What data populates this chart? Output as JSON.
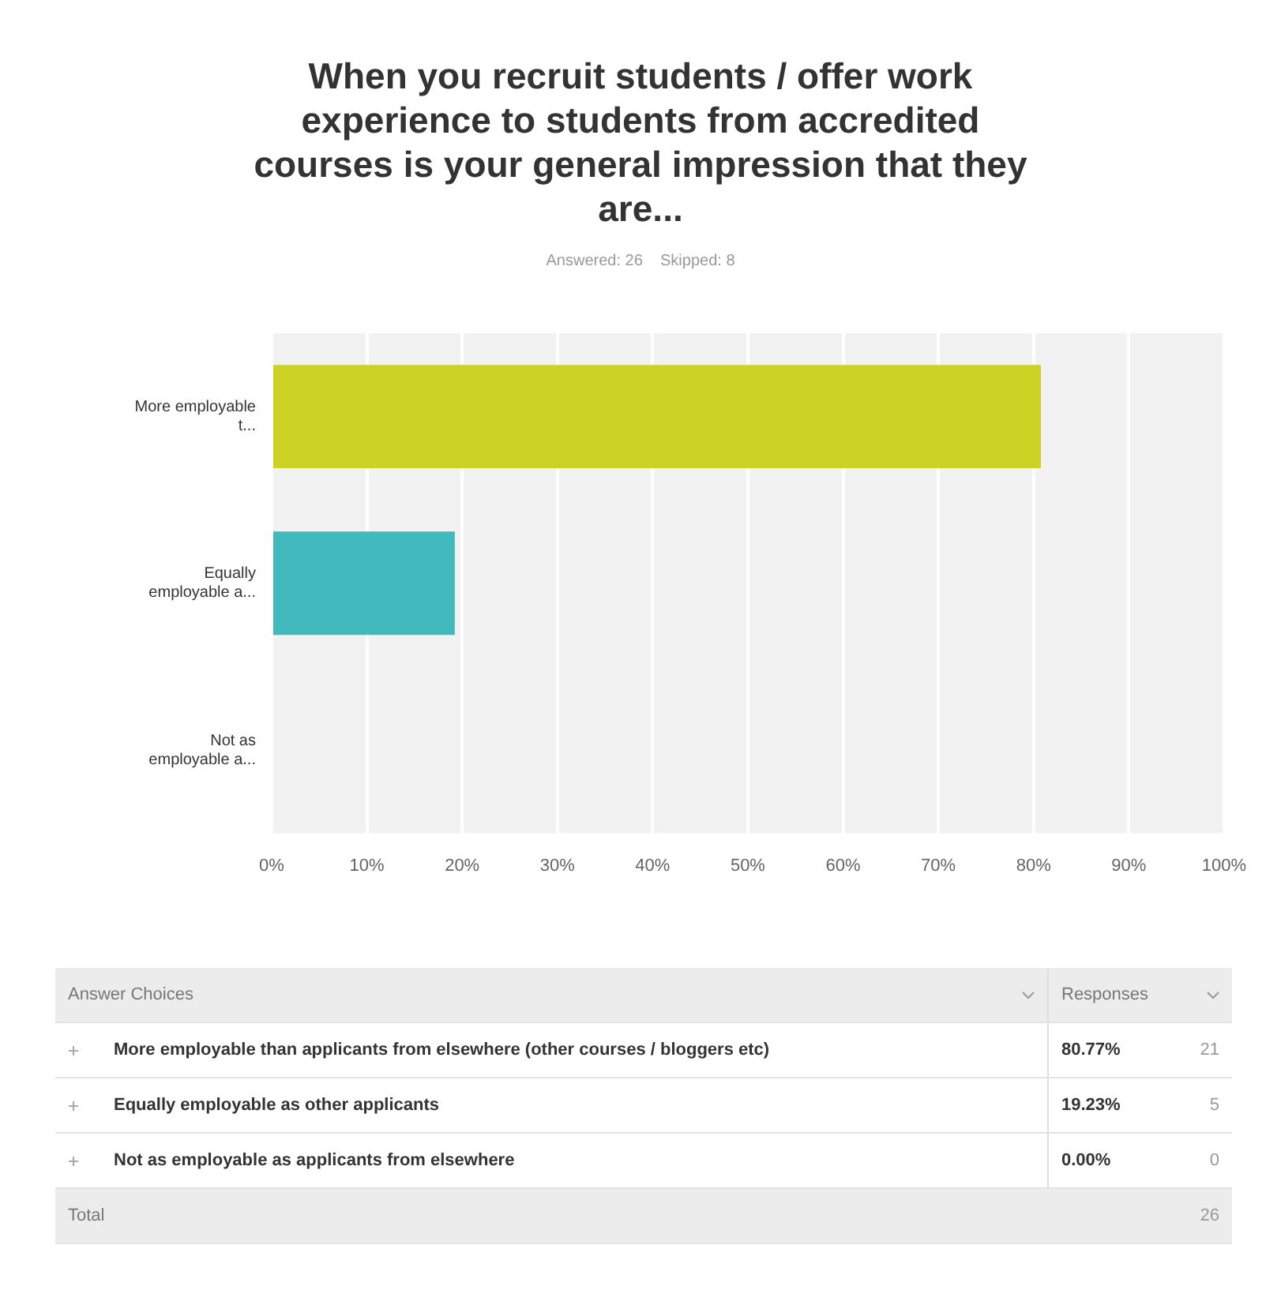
{
  "chart_data": {
    "type": "bar",
    "orientation": "horizontal",
    "title": "When you recruit students / offer work experience to students from accredited courses is your general impression that they are...",
    "subtitle": "Answered: 26    Skipped: 8",
    "categories": [
      "More employable t...",
      "Equally employable a...",
      "Not as employable a..."
    ],
    "values": [
      80.77,
      19.23,
      0
    ],
    "colors": [
      "#cbd223",
      "#41b9bd",
      "#f27e55"
    ],
    "xlim": [
      0,
      100
    ],
    "xticks": [
      {
        "value": 0,
        "label": "0%"
      },
      {
        "value": 10,
        "label": "10%"
      },
      {
        "value": 20,
        "label": "20%"
      },
      {
        "value": 30,
        "label": "30%"
      },
      {
        "value": 40,
        "label": "40%"
      },
      {
        "value": 50,
        "label": "50%"
      },
      {
        "value": 60,
        "label": "60%"
      },
      {
        "value": 70,
        "label": "70%"
      },
      {
        "value": 80,
        "label": "80%"
      },
      {
        "value": 90,
        "label": "90%"
      },
      {
        "value": 100,
        "label": "100%"
      }
    ],
    "grid": "x",
    "legend": false,
    "annotations": [
      "Answer Choices",
      "Responses",
      "More employable than applicants from elsewhere (other courses / bloggers etc)",
      "80.77%",
      "21",
      "Equally employable as other applicants",
      "19.23%",
      "5",
      "Not as employable as applicants from elsewhere",
      "0.00%",
      "0",
      "Total",
      "26"
    ]
  }
}
